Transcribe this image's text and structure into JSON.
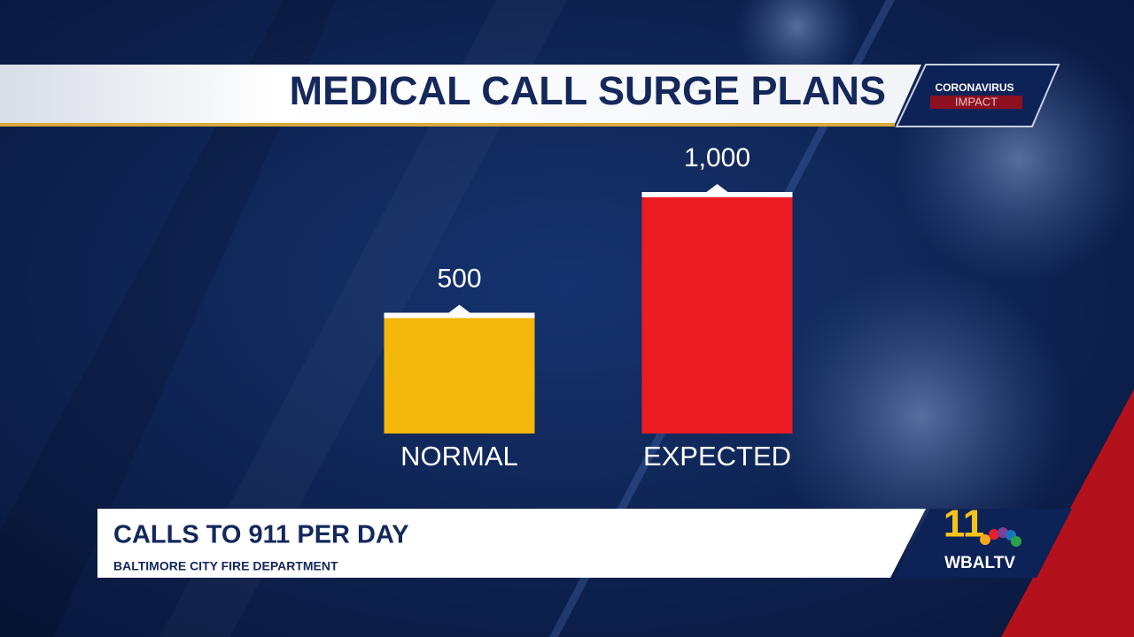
{
  "chart_data": {
    "type": "bar",
    "title": "MEDICAL CALL SURGE PLANS",
    "subtitle": "CALLS TO 911 PER DAY",
    "source": "BALTIMORE CITY FIRE DEPARTMENT",
    "categories": [
      "NORMAL",
      "EXPECTED"
    ],
    "values": [
      500,
      1000
    ],
    "value_labels": [
      "500",
      "1,000"
    ],
    "colors": [
      "#f4b70b",
      "#ec1c24"
    ]
  },
  "badge": {
    "line1": "CORONAVIRUS",
    "line2": "IMPACT"
  },
  "logo": {
    "number": "11",
    "station": "WBALTV"
  }
}
